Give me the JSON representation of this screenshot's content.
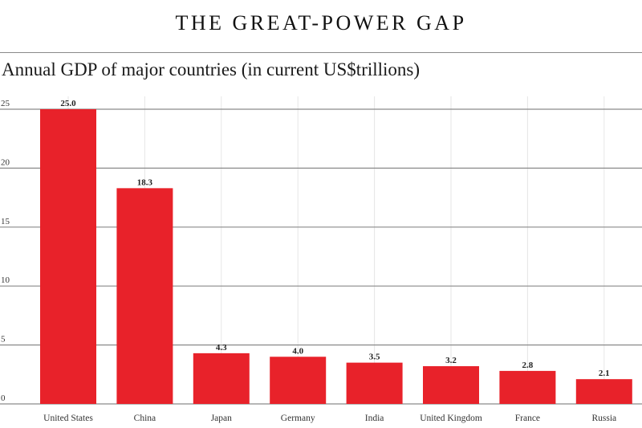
{
  "header": {
    "title": "THE GREAT-POWER GAP",
    "subtitle": "Annual GDP of major countries (in current US$trillions)"
  },
  "chart_data": {
    "type": "bar",
    "title": "THE GREAT-POWER GAP",
    "subtitle": "Annual GDP of major countries (in current US$trillions)",
    "xlabel": "",
    "ylabel": "",
    "categories": [
      "United States",
      "China",
      "Japan",
      "Germany",
      "India",
      "United Kingdom",
      "France",
      "Russia"
    ],
    "values": [
      25.0,
      18.3,
      4.3,
      4.0,
      3.5,
      3.2,
      2.8,
      2.1
    ],
    "data_labels": [
      "25.0",
      "18.3",
      "4.3",
      "4.0",
      "3.5",
      "3.2",
      "2.8",
      "2.1"
    ],
    "ylim": [
      0,
      25
    ],
    "yticks": [
      0,
      5,
      10,
      15,
      20,
      25
    ],
    "ytick_labels": [
      "0",
      "5",
      "10",
      "15",
      "20",
      "25"
    ],
    "grid": true,
    "legend": "none",
    "bar_color": "#e8222a",
    "grid_color": "#8a8a8a",
    "vgrid_color": "#e6e6e6"
  }
}
